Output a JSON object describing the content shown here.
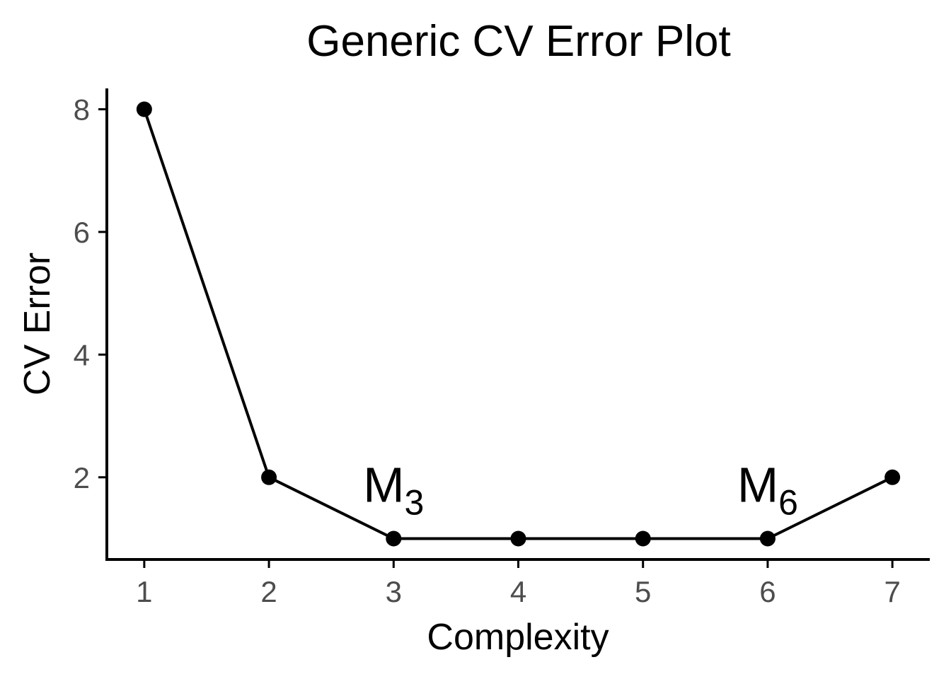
{
  "chart_data": {
    "type": "line",
    "title": "Generic CV Error Plot",
    "xlabel": "Complexity",
    "ylabel": "CV Error",
    "x": [
      1,
      2,
      3,
      4,
      5,
      6,
      7
    ],
    "series": [
      {
        "values": [
          8,
          2,
          1,
          1,
          1,
          1,
          2
        ]
      }
    ],
    "xticks": [
      "1",
      "2",
      "3",
      "4",
      "5",
      "6",
      "7"
    ],
    "yticks": [
      "2",
      "4",
      "6",
      "8"
    ],
    "xlim": [
      0.7,
      7.3
    ],
    "ylim": [
      0.66,
      8.34
    ],
    "grid": false,
    "legend": "none",
    "annotations": [
      {
        "text": "M",
        "subscript": "3",
        "x": 3,
        "y": 1.6
      },
      {
        "text": "M",
        "subscript": "6",
        "x": 6,
        "y": 1.6
      }
    ],
    "colors": {
      "line": "#000000",
      "points": "#000000",
      "axis": "#000000",
      "tick_text": "#4d4d4d"
    }
  }
}
